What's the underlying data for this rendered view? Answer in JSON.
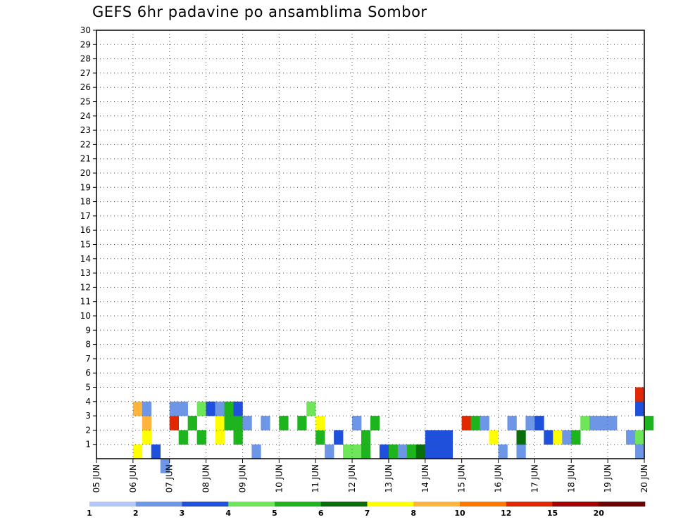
{
  "chart_data": {
    "type": "heatmap",
    "title": "GEFS 6hr padavine po ansamblima Sombor",
    "x_ticks": [
      "05 JUN",
      "06 JUN",
      "07 JUN",
      "08 JUN",
      "09 JUN",
      "10 JUN",
      "11 JUN",
      "12 JUN",
      "13 JUN",
      "14 JUN",
      "15 JUN",
      "16 JUN",
      "17 JUN",
      "18 JUN",
      "19 JUN",
      "20 JUN"
    ],
    "y_ticks": [
      "1",
      "2",
      "3",
      "4",
      "5",
      "6",
      "7",
      "8",
      "9",
      "10",
      "11",
      "12",
      "13",
      "14",
      "15",
      "16",
      "17",
      "18",
      "19",
      "20",
      "21",
      "22",
      "23",
      "24",
      "25",
      "26",
      "27",
      "28",
      "29",
      "30"
    ],
    "time_steps": 60,
    "members": 30,
    "xlim": [
      0,
      60
    ],
    "ylim": [
      0,
      30
    ],
    "grid": true,
    "colorbar": {
      "placement": "bottom",
      "labels": [
        "1",
        "2",
        "3",
        "4",
        "5",
        "6",
        "7",
        "8",
        "10",
        "12",
        "15",
        "20"
      ],
      "colors": [
        "#b4c8f5",
        "#6e96e6",
        "#1e50dc",
        "#6ee65a",
        "#1eb41e",
        "#0a6e0a",
        "#ffff00",
        "#ffb43c",
        "#ff7800",
        "#e12800",
        "#a00000",
        "#6e0000"
      ]
    },
    "cells": [
      [
        4,
        1,
        6
      ],
      [
        5,
        2,
        6
      ],
      [
        4,
        4,
        7
      ],
      [
        5,
        3,
        7
      ],
      [
        5,
        4,
        1
      ],
      [
        6,
        1,
        2
      ],
      [
        7,
        0,
        1
      ],
      [
        8,
        3,
        9
      ],
      [
        8,
        4,
        1
      ],
      [
        9,
        2,
        4
      ],
      [
        9,
        4,
        1
      ],
      [
        10,
        3,
        4
      ],
      [
        11,
        2,
        4
      ],
      [
        11,
        4,
        3
      ],
      [
        12,
        4,
        2
      ],
      [
        13,
        2,
        6
      ],
      [
        13,
        3,
        6
      ],
      [
        13,
        4,
        1
      ],
      [
        14,
        3,
        4
      ],
      [
        14,
        4,
        4
      ],
      [
        15,
        2,
        4
      ],
      [
        15,
        3,
        4
      ],
      [
        15,
        4,
        2
      ],
      [
        16,
        3,
        1
      ],
      [
        17,
        1,
        1
      ],
      [
        18,
        3,
        1
      ],
      [
        20,
        3,
        4
      ],
      [
        22,
        3,
        4
      ],
      [
        23,
        4,
        3
      ],
      [
        24,
        2,
        4
      ],
      [
        24,
        3,
        6
      ],
      [
        25,
        1,
        1
      ],
      [
        26,
        2,
        2
      ],
      [
        27,
        1,
        3
      ],
      [
        28,
        1,
        3
      ],
      [
        28,
        3,
        1
      ],
      [
        29,
        1,
        4
      ],
      [
        29,
        2,
        4
      ],
      [
        30,
        3,
        4
      ],
      [
        31,
        1,
        2
      ],
      [
        32,
        1,
        4
      ],
      [
        33,
        1,
        1
      ],
      [
        34,
        1,
        4
      ],
      [
        35,
        1,
        5
      ],
      [
        36,
        1,
        2
      ],
      [
        36,
        2,
        2
      ],
      [
        37,
        1,
        2
      ],
      [
        37,
        2,
        2
      ],
      [
        38,
        1,
        2
      ],
      [
        38,
        2,
        2
      ],
      [
        40,
        3,
        9
      ],
      [
        41,
        3,
        4
      ],
      [
        42,
        3,
        1
      ],
      [
        43,
        2,
        6
      ],
      [
        44,
        1,
        1
      ],
      [
        45,
        3,
        1
      ],
      [
        46,
        1,
        1
      ],
      [
        46,
        2,
        5
      ],
      [
        47,
        3,
        1
      ],
      [
        48,
        3,
        2
      ],
      [
        49,
        2,
        2
      ],
      [
        50,
        2,
        6
      ],
      [
        51,
        2,
        1
      ],
      [
        52,
        2,
        4
      ],
      [
        53,
        3,
        3
      ],
      [
        54,
        3,
        1
      ],
      [
        55,
        3,
        1
      ],
      [
        56,
        3,
        1
      ],
      [
        58,
        2,
        1
      ],
      [
        59,
        2,
        3
      ],
      [
        59,
        1,
        1
      ],
      [
        59,
        5,
        9
      ],
      [
        59,
        4,
        2
      ],
      [
        60,
        3,
        4
      ]
    ]
  }
}
